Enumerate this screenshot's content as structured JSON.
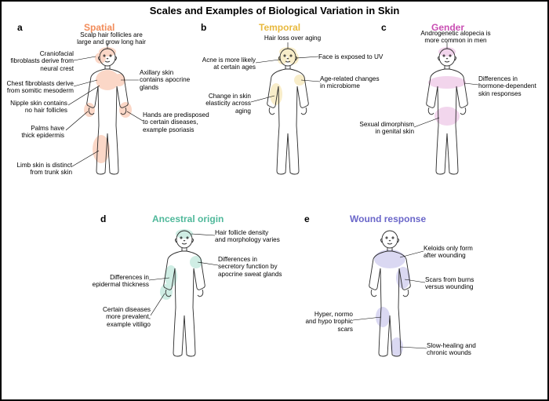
{
  "title": "Scales and Examples of Biological Variation in Skin",
  "panels": {
    "a": {
      "letter": "a",
      "header": "Spatial",
      "header_color": "#f28c5a",
      "spot_color": "#f9b89a",
      "labels": {
        "scalp": "Scalp hair follicles are\nlarge and grow long hair",
        "craniofacial": "Craniofacial\nfibroblasts derive from\nneural crest",
        "chest": "Chest fibroblasts derive\nfrom somitic mesoderm",
        "axillary": "Axillary skin\ncontains apocrine\nglands",
        "nipple": "Nipple skin contains\nno hair follicles",
        "palms": "Palms have\nthick epidermis",
        "hands": "Hands are predisposed\nto certain diseases,\nexample psoriasis",
        "limb": "Limb skin is distinct\nfrom trunk skin"
      }
    },
    "b": {
      "letter": "b",
      "header": "Temporal",
      "header_color": "#e8b93f",
      "spot_color": "#f4df9e",
      "labels": {
        "hairloss": "Hair loss over aging",
        "acne": "Acne is more likely\nat certain ages",
        "faceuv": "Face is exposed to UV",
        "microbiome": "Age-related changes\nin microbiome",
        "elasticity": "Change in skin\nelasticity across\naging"
      }
    },
    "c": {
      "letter": "c",
      "header": "Gender",
      "header_color": "#c94fb3",
      "spot_color": "#e8b4de",
      "labels": {
        "alopecia": "Androgenetic alopecia is\nmore common in men",
        "hormone": "Differences in\nhormone-dependent\nskin responses",
        "dimorphism": "Sexual dimorphism\nin genital skin"
      }
    },
    "d": {
      "letter": "d",
      "header": "Ancestral origin",
      "header_color": "#4fb89a",
      "spot_color": "#a8e0cf",
      "labels": {
        "follicle": "Hair follicle density\nand morphology varies",
        "secretory": "Differences in\nsecretory function by\napocrine sweat glands",
        "thickness": "Differences in\nepidermal thickness",
        "vitiligo": "Certain diseases\nmore prevalent,\nexample vitiligo"
      }
    },
    "e": {
      "letter": "e",
      "header": "Wound response",
      "header_color": "#6a66c9",
      "spot_color": "#bdb9e8",
      "labels": {
        "keloids": "Keloids only form\nafter wounding",
        "burns": "Scars from burns\nversus wounding",
        "trophic": "Hyper, normo\nand hypo trophic\nscars",
        "chronic": "Slow-healing and\nchronic wounds"
      }
    }
  },
  "body_outline": {
    "stroke": "#2a2a2a",
    "stroke_width": 0.9,
    "fill": "none",
    "width": 70,
    "height": 170
  }
}
